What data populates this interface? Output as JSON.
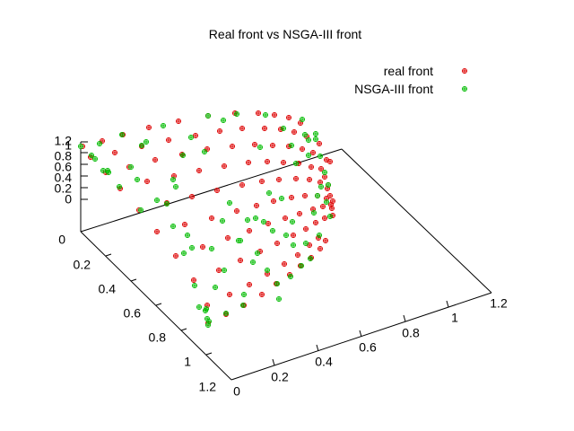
{
  "chart_data": {
    "type": "scatter",
    "title": "Real front vs NSGA-III front",
    "colors": {
      "real": "#dd0000",
      "nsga": "#00bb00",
      "axes": "#000000",
      "background": "#ffffff"
    },
    "legend": {
      "position": "top-right",
      "entries": [
        "real front",
        "NSGA-III front"
      ]
    },
    "axes": {
      "x": {
        "ticks": [
          "0",
          "0.2",
          "0.4",
          "0.6",
          "0.8",
          "1",
          "1.2"
        ],
        "range": [
          0,
          1.2
        ]
      },
      "y": {
        "ticks": [
          "0",
          "0.2",
          "0.4",
          "0.6",
          "0.8",
          "1",
          "1.2"
        ],
        "range": [
          0,
          1.2
        ]
      },
      "z": {
        "ticks": [
          "0",
          "0.2",
          "0.4",
          "0.6",
          "0.8",
          "1",
          "1.2"
        ],
        "range": [
          0,
          1.2
        ]
      }
    },
    "grid": false,
    "series": [
      {
        "name": "real front",
        "marker": "circle-plus",
        "points": [
          [
            92,
            163
          ],
          [
            114,
            157
          ],
          [
            137,
            150
          ],
          [
            166,
            142
          ],
          [
            199,
            135
          ],
          [
            232,
            129
          ],
          [
            262,
            126
          ],
          [
            288,
            126
          ],
          [
            306,
            128
          ],
          [
            322,
            131
          ],
          [
            335,
            137
          ],
          [
            101,
            175
          ],
          [
            128,
            170
          ],
          [
            158,
            163
          ],
          [
            188,
            156
          ],
          [
            218,
            151
          ],
          [
            245,
            146
          ],
          [
            270,
            143
          ],
          [
            295,
            143
          ],
          [
            313,
            144
          ],
          [
            328,
            147
          ],
          [
            342,
            152
          ],
          [
            118,
            192
          ],
          [
            144,
            186
          ],
          [
            173,
            178
          ],
          [
            203,
            172
          ],
          [
            231,
            166
          ],
          [
            259,
            163
          ],
          [
            284,
            161
          ],
          [
            304,
            162
          ],
          [
            322,
            163
          ],
          [
            337,
            166
          ],
          [
            349,
            170
          ],
          [
            134,
            210
          ],
          [
            164,
            202
          ],
          [
            194,
            196
          ],
          [
            222,
            190
          ],
          [
            250,
            185
          ],
          [
            277,
            181
          ],
          [
            298,
            180
          ],
          [
            316,
            181
          ],
          [
            333,
            182
          ],
          [
            347,
            186
          ],
          [
            358,
            188
          ],
          [
            155,
            234
          ],
          [
            186,
            226
          ],
          [
            214,
            219
          ],
          [
            242,
            212
          ],
          [
            270,
            206
          ],
          [
            292,
            202
          ],
          [
            311,
            200
          ],
          [
            330,
            199
          ],
          [
            345,
            200
          ],
          [
            357,
            203
          ],
          [
            366,
            206
          ],
          [
            175,
            258
          ],
          [
            206,
            250
          ],
          [
            236,
            243
          ],
          [
            264,
            235
          ],
          [
            286,
            229
          ],
          [
            305,
            224
          ],
          [
            325,
            220
          ],
          [
            340,
            218
          ],
          [
            354,
            218
          ],
          [
            364,
            221
          ],
          [
            371,
            224
          ],
          [
            196,
            285
          ],
          [
            226,
            275
          ],
          [
            254,
            265
          ],
          [
            278,
            257
          ],
          [
            299,
            249
          ],
          [
            318,
            243
          ],
          [
            334,
            238
          ],
          [
            349,
            233
          ],
          [
            360,
            230
          ],
          [
            369,
            228
          ],
          [
            216,
            312
          ],
          [
            244,
            301
          ],
          [
            268,
            290
          ],
          [
            290,
            280
          ],
          [
            309,
            271
          ],
          [
            327,
            262
          ],
          [
            341,
            255
          ],
          [
            352,
            248
          ],
          [
            362,
            243
          ],
          [
            231,
            340
          ],
          [
            256,
            328
          ],
          [
            278,
            317
          ],
          [
            298,
            305
          ],
          [
            317,
            294
          ],
          [
            332,
            284
          ],
          [
            345,
            273
          ],
          [
            355,
            265
          ],
          [
            232,
            360
          ],
          [
            252,
            350
          ],
          [
            272,
            340
          ],
          [
            292,
            328
          ],
          [
            308,
            316
          ],
          [
            323,
            306
          ],
          [
            335,
            296
          ],
          [
            347,
            287
          ],
          [
            357,
            277
          ],
          [
            363,
            268
          ],
          [
            362,
            197
          ],
          [
            365,
            210
          ],
          [
            368,
            218
          ],
          [
            370,
            232
          ],
          [
            371,
            240
          ],
          [
            368,
            180
          ],
          [
            364,
            178
          ],
          [
            356,
            160
          ]
        ]
      },
      {
        "name": "NSGA-III front",
        "marker": "circle-plus",
        "points": [
          [
            90,
            163
          ],
          [
            102,
            173
          ],
          [
            115,
            190
          ],
          [
            133,
            208
          ],
          [
            136,
            150
          ],
          [
            158,
            162
          ],
          [
            157,
            234
          ],
          [
            182,
            140
          ],
          [
            186,
            227
          ],
          [
            205,
            282
          ],
          [
            213,
            153
          ],
          [
            228,
            169
          ],
          [
            232,
            129
          ],
          [
            230,
            344
          ],
          [
            232,
            362
          ],
          [
            252,
            349
          ],
          [
            271,
            340
          ],
          [
            264,
            127
          ],
          [
            290,
            164
          ],
          [
            296,
            128
          ],
          [
            300,
            215
          ],
          [
            311,
            333
          ],
          [
            316,
            143
          ],
          [
            325,
            162
          ],
          [
            330,
            182
          ],
          [
            337,
            133
          ],
          [
            344,
            156
          ],
          [
            352,
            149
          ],
          [
            357,
            174
          ],
          [
            362,
            192
          ],
          [
            366,
            206
          ],
          [
            364,
            225
          ],
          [
            368,
            241
          ],
          [
            354,
            218
          ],
          [
            356,
            262
          ],
          [
            346,
            288
          ],
          [
            336,
            296
          ],
          [
            324,
            308
          ],
          [
            309,
            316
          ],
          [
            298,
            301
          ],
          [
            282,
            292
          ],
          [
            272,
            328
          ],
          [
            266,
            268
          ],
          [
            250,
            301
          ],
          [
            240,
            320
          ],
          [
            222,
            342
          ],
          [
            217,
            318
          ],
          [
            193,
            200
          ],
          [
            204,
            173
          ],
          [
            175,
            223
          ],
          [
            153,
            200
          ],
          [
            146,
            186
          ],
          [
            121,
            192
          ],
          [
            111,
            160
          ],
          [
            163,
            158
          ],
          [
            193,
            252
          ],
          [
            214,
            276
          ],
          [
            248,
            246
          ],
          [
            276,
            245
          ],
          [
            285,
            243
          ],
          [
            304,
            257
          ],
          [
            319,
            262
          ],
          [
            327,
            273
          ],
          [
            341,
            271
          ],
          [
            350,
            237
          ],
          [
            358,
            208
          ],
          [
            249,
            134
          ],
          [
            196,
            208
          ],
          [
            209,
            262
          ],
          [
            236,
            277
          ],
          [
            256,
            226
          ],
          [
            268,
            268
          ],
          [
            287,
            282
          ],
          [
            294,
            247
          ],
          [
            314,
            221
          ],
          [
            326,
            247
          ],
          [
            344,
            173
          ],
          [
            352,
            155
          ],
          [
            340,
            150
          ],
          [
            120,
            190
          ],
          [
            106,
            177
          ],
          [
            229,
            346
          ],
          [
            231,
            355
          ],
          [
            233,
            358
          ]
        ]
      }
    ]
  }
}
